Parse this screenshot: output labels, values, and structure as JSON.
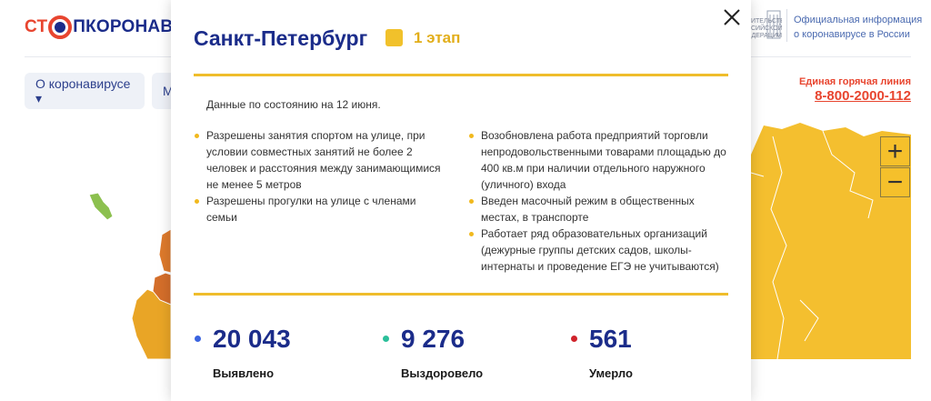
{
  "header": {
    "logo_prefix": "СТ",
    "logo_suffix": "ПКОРОНАВИ",
    "gov_info_line1": "Официальная информация",
    "gov_info_line2": "о коронавирусе в России",
    "gov_emblem_text": "ИТЕЛЬСТВО СИЙСКОЙ ДЕРАЦИИ"
  },
  "nav": {
    "about_label": "О коронавирусе ▾",
    "second_label": "М"
  },
  "hotline": {
    "label": "Единая горячая линия",
    "number": "8-800-2000-112"
  },
  "modal": {
    "title": "Санкт-Петербург",
    "stage_label": "1 этап",
    "date_text": "Данные по состоянию на 12 июня.",
    "rules_left": [
      "Разрешены занятия спортом на улице, при условии совместных занятий не более 2 человек и расстояния между занимающимися не менее 5 метров",
      "Разрешены прогулки на улице с членами семьи"
    ],
    "rules_right": [
      "Возобновлена работа предприятий торговли непродовольственными товарами площадью до 400 кв.м при наличии отдельного наружного (уличного) входа",
      "Введен масочный режим в общественных местах, в транспорте",
      "Работает ряд образовательных организаций (дежурные группы детских садов, школы-интернаты и проведение ЕГЭ не учитываются)"
    ],
    "stats": [
      {
        "value": "20 043",
        "label": "Выявлено",
        "color": "#3b64e0"
      },
      {
        "value": "9 276",
        "label": "Выздоровело",
        "color": "#2bbf9a"
      },
      {
        "value": "561",
        "label": "Умерло",
        "color": "#d0232b"
      }
    ]
  },
  "map": {
    "zoom_in": "+",
    "zoom_out": "−",
    "colors": {
      "stage1": "#f4bf2f",
      "stage2": "#e9a526",
      "stage3": "#de7a2c",
      "green": "#8cc04f"
    }
  }
}
